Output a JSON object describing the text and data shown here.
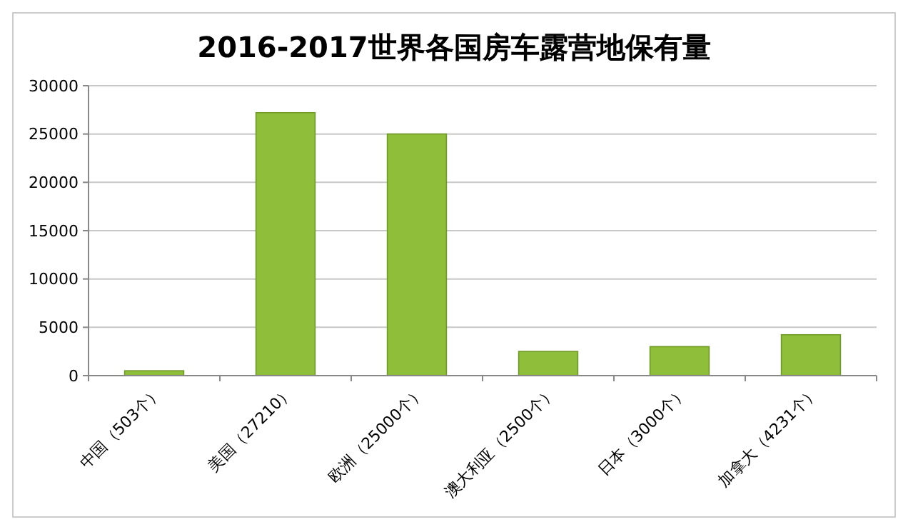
{
  "chart_data": {
    "type": "bar",
    "title": "2016-2017世界各国房车露营地保有量",
    "categories": [
      "中国（503个）",
      "美国（27210）",
      "欧洲（25000个）",
      "澳大利亚（2500个）",
      "日本（3000个）",
      "加拿大（4231个）"
    ],
    "values": [
      503,
      27210,
      25000,
      2500,
      3000,
      4231
    ],
    "color": "#8fbf3a",
    "ylim": [
      0,
      30000
    ],
    "yticks": [
      0,
      5000,
      10000,
      15000,
      20000,
      25000,
      30000
    ],
    "grid": "y"
  }
}
